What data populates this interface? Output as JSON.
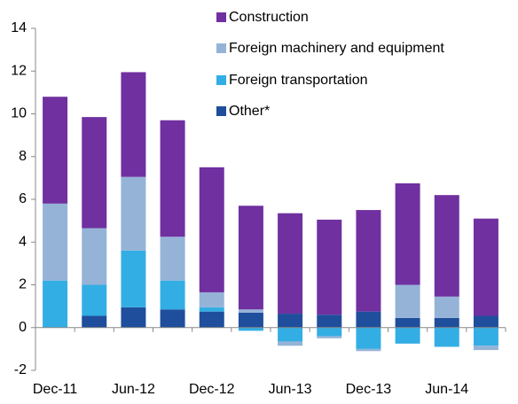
{
  "chart_data": {
    "type": "stacked_bar",
    "categories": [
      "Dec-11",
      null,
      "Jun-12",
      null,
      "Dec-12",
      null,
      "Jun-13",
      null,
      "Dec-13",
      null,
      "Jun-14",
      null
    ],
    "series": [
      {
        "name": "Construction",
        "color": "#7030a0",
        "values": [
          5.0,
          5.2,
          4.9,
          5.45,
          5.85,
          4.85,
          4.7,
          4.45,
          4.75,
          4.75,
          4.75,
          4.55
        ]
      },
      {
        "name": "Foreign machinery and equipment",
        "color": "#95b3d7",
        "values": [
          3.6,
          2.65,
          3.45,
          2.05,
          0.7,
          0.15,
          -0.2,
          -0.1,
          -0.1,
          1.55,
          1.0,
          -0.2
        ]
      },
      {
        "name": "Foreign transportation",
        "color": "#33aee4",
        "values": [
          2.2,
          1.45,
          2.65,
          1.35,
          0.2,
          -0.15,
          -0.65,
          -0.4,
          -1.0,
          -0.75,
          -0.9,
          -0.85
        ]
      },
      {
        "name": "Other*",
        "color": "#1f4e9c",
        "values": [
          0,
          0.55,
          0.95,
          0.85,
          0.75,
          0.7,
          0.65,
          0.6,
          0.75,
          0.45,
          0.45,
          0.55
        ]
      }
    ],
    "ylim": [
      -2,
      14
    ],
    "yticks": [
      -2,
      0,
      2,
      4,
      6,
      8,
      10,
      12,
      14
    ],
    "grid": false
  }
}
